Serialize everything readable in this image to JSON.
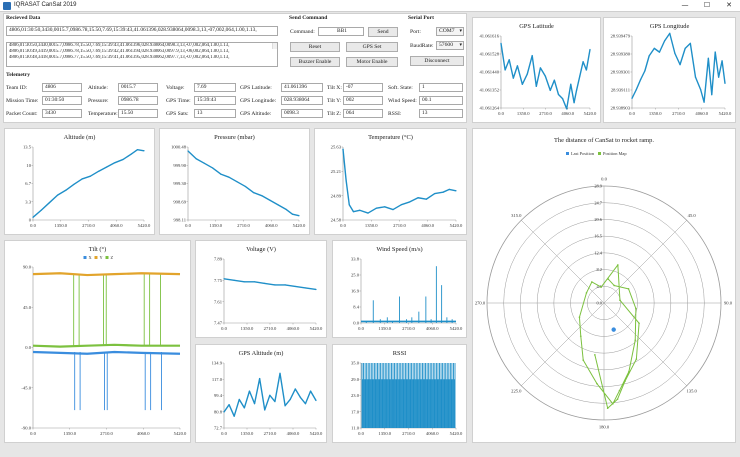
{
  "window": {
    "title": "IQRASAT CanSat 2019",
    "minimize": "—",
    "maximize": "☐",
    "close": "✕"
  },
  "received": {
    "label": "Recieved Data",
    "top_value": "4806,01:30:50,3430,0015.7,0986.78,15.50,7.69,15:39:43,41.061396,028.938064,0098.3,13,-07,002,064,1.00,1.13,",
    "lines": [
      "4806,01:30:50,3430,0015.7,0986.78,15.50,7.69,15:39:43,41.061396,028.938064,0098.3,13,-07,002,064,1.00,1.13,",
      "4806,01:30:49,3419,0015.7,0986.78,15.50,7.69,15:39:42,41.061394,028.938063,0097.9,13,-06,002,064,1.00,1.13,",
      "4806,01:30:48,3418,0015.7,0986.77,15.50,7.69,15:39:41,41.061395,028.938062,0097.7,13,-07,002,064,1.00,1.13,"
    ]
  },
  "command": {
    "label": "Send Command",
    "field_label": "Command:",
    "value": "BB1",
    "send": "Send",
    "reset": "Reset",
    "gps_set": "GPS Set",
    "buzzer": "Buzzer Enable",
    "motor": "Motor Enable"
  },
  "serial": {
    "label": "Serial Port",
    "port_label": "Port:",
    "port": "COM7",
    "baud_label": "BaudRate:",
    "baud": "57600",
    "disconnect": "Disconnect"
  },
  "telemetry": {
    "label": "Telemetry",
    "team_id": {
      "label": "Team ID:",
      "value": "4806"
    },
    "mission_time": {
      "label": "Mission Time:",
      "value": "01:30:50"
    },
    "packet_count": {
      "label": "Packet Count:",
      "value": "3430"
    },
    "altitude": {
      "label": "Altitude:",
      "value": "0015.7"
    },
    "pressure": {
      "label": "Pressure:",
      "value": "0986.78"
    },
    "temperature": {
      "label": "Temperature:",
      "value": "15.50"
    },
    "voltage": {
      "label": "Voltage:",
      "value": "7.69"
    },
    "gps_time": {
      "label": "GPS Time:",
      "value": "15:39:43"
    },
    "gps_sats": {
      "label": "GPS Sats:",
      "value": "13"
    },
    "gps_latitude": {
      "label": "GPS Latitude:",
      "value": "41.061396"
    },
    "gps_longitude": {
      "label": "GPS Longitude:",
      "value": "028.938064"
    },
    "gps_altitude": {
      "label": "GPS Altitude:",
      "value": "0098.3"
    },
    "tilt_x": {
      "label": "Tilt X:",
      "value": "-07"
    },
    "tilt_y": {
      "label": "Tilt Y:",
      "value": "002"
    },
    "tilt_z": {
      "label": "Tilt Z:",
      "value": "064"
    },
    "soft_state": {
      "label": "Soft. State:",
      "value": "1"
    },
    "wind_speed": {
      "label": "Wind Speed:",
      "value": "00.1"
    },
    "rssi": {
      "label": "RSSI:",
      "value": "13"
    }
  },
  "chart_data": [
    {
      "id": "lat",
      "type": "line",
      "title": "GPS Latitude",
      "yticks": [
        "41.061616",
        "41.061528",
        "41.061440",
        "41.061352",
        "41.061264"
      ],
      "xticks": [
        "0.0",
        "1350.0",
        "2710.0",
        "4060.0",
        "5420.0"
      ],
      "ylim": [
        41.061264,
        41.061616
      ],
      "xlim": [
        0,
        5420
      ],
      "x": [
        0,
        250,
        500,
        750,
        1000,
        1300,
        1600,
        1900,
        2150,
        2400,
        2700,
        3000,
        3250,
        3500,
        3750,
        4000,
        4250,
        4450,
        4600,
        4800,
        5000,
        5200,
        5420
      ],
      "values": [
        41.06158,
        41.06145,
        41.0615,
        41.06141,
        41.06147,
        41.06138,
        41.06143,
        41.06152,
        41.06137,
        41.06146,
        41.06142,
        41.06135,
        41.0614,
        41.06133,
        41.06131,
        41.06126,
        41.06138,
        41.06129,
        41.06135,
        41.06142,
        41.06149,
        41.06145,
        41.06155
      ]
    },
    {
      "id": "lon",
      "type": "line",
      "title": "GPS Longitude",
      "yticks": [
        "28.939479",
        "28.939380",
        "28.939301",
        "28.939111",
        "28.938903"
      ],
      "xticks": [
        "0.0",
        "1350.0",
        "2710.0",
        "4060.0",
        "5420.0"
      ],
      "ylim": [
        28.938903,
        28.939479
      ],
      "xlim": [
        0,
        5420
      ],
      "x": [
        0,
        250,
        500,
        750,
        1000,
        1300,
        1600,
        1900,
        2200,
        2500,
        2800,
        3100,
        3400,
        3700,
        4000,
        4200,
        4450,
        4650,
        4850,
        5050,
        5250,
        5420
      ],
      "values": [
        28.93898,
        28.93905,
        28.93913,
        28.9392,
        28.93932,
        28.93938,
        28.93935,
        28.93944,
        28.9395,
        28.93934,
        28.93925,
        28.93938,
        28.93942,
        28.93915,
        28.93905,
        28.93895,
        28.9393,
        28.93901,
        28.93935,
        28.93915,
        28.93928,
        28.9391
      ]
    },
    {
      "id": "alt",
      "type": "line",
      "title": "Altitude (m)",
      "yticks": [
        "13.5",
        "10",
        "6.7",
        "3.3",
        "0"
      ],
      "xticks": [
        "0.0",
        "1350.0",
        "2710.0",
        "4060.0",
        "5420.0"
      ],
      "ylim": [
        0,
        13.5
      ],
      "xlim": [
        0,
        5420
      ],
      "x": [
        0,
        400,
        800,
        1200,
        1600,
        2000,
        2400,
        2800,
        3200,
        3600,
        4000,
        4400,
        4800,
        5100,
        5420
      ],
      "values": [
        0.5,
        1.8,
        3.2,
        4.6,
        5.5,
        6.6,
        7.6,
        8.1,
        9.0,
        9.8,
        10.6,
        11.2,
        12.2,
        13.0,
        12.8
      ]
    },
    {
      "id": "pres",
      "type": "line",
      "title": "Pressure (mbar)",
      "yticks": [
        "1000.48",
        "999.90",
        "999.30",
        "998.69",
        "998.11"
      ],
      "xticks": [
        "0.0",
        "1350.0",
        "2710.0",
        "4060.0",
        "5420.0"
      ],
      "ylim": [
        998.11,
        1000.48
      ],
      "xlim": [
        0,
        5420
      ],
      "x": [
        0,
        400,
        800,
        1200,
        1600,
        2000,
        2400,
        2800,
        3200,
        3600,
        4000,
        4400,
        4800,
        5100,
        5420
      ],
      "values": [
        1000.35,
        1000.1,
        999.95,
        999.8,
        999.6,
        999.5,
        999.35,
        999.2,
        999.0,
        998.9,
        998.75,
        998.6,
        998.45,
        998.3,
        998.25
      ]
    },
    {
      "id": "temp",
      "type": "line",
      "title": "Temperature (°C)",
      "yticks": [
        "25.63",
        "25.21",
        "24.89",
        "24.58"
      ],
      "xticks": [
        "0.0",
        "1350.0",
        "2710.0",
        "4060.0",
        "5420.0"
      ],
      "ylim": [
        24.58,
        25.63
      ],
      "xlim": [
        0,
        5420
      ],
      "x": [
        0,
        150,
        300,
        500,
        800,
        1200,
        1600,
        2000,
        2400,
        2800,
        3200,
        3600,
        4000,
        4400,
        4800,
        5100,
        5420
      ],
      "values": [
        25.6,
        25.15,
        24.8,
        24.7,
        24.72,
        24.68,
        24.75,
        24.77,
        24.73,
        24.8,
        24.84,
        24.9,
        24.88,
        24.96,
        24.98,
        25.02,
        25.0
      ]
    },
    {
      "id": "tilt",
      "type": "line",
      "title": "Tilt (°)",
      "legend": [
        "X",
        "Y",
        "Z"
      ],
      "yticks": [
        "90.0",
        "45.0",
        "0.0",
        "-45.0",
        "-90.0"
      ],
      "xticks": [
        "0.0",
        "1350.0",
        "2710.0",
        "4060.0",
        "5420.0"
      ],
      "ylim": [
        -90,
        90
      ],
      "xlim": [
        0,
        5420
      ],
      "series": [
        {
          "name": "X",
          "color": "#3a8dde",
          "values": [
            -5,
            -6,
            -7,
            -5,
            -6,
            -7
          ]
        },
        {
          "name": "Y",
          "color": "#e2a42c",
          "values": [
            82,
            83,
            81,
            82,
            83,
            82
          ]
        },
        {
          "name": "Z",
          "color": "#7cc13f",
          "values": [
            2,
            1,
            2,
            3,
            2,
            2
          ]
        }
      ],
      "x": [
        0,
        1000,
        2000,
        3000,
        4000,
        5420
      ],
      "spikes_x": [
        1500,
        1700,
        2600,
        2700,
        4100,
        4300,
        4700
      ]
    },
    {
      "id": "volt",
      "type": "line",
      "title": "Voltage (V)",
      "yticks": [
        "7.89",
        "7.75",
        "7.61",
        "7.47"
      ],
      "xticks": [
        "0.0",
        "1350.0",
        "2710.0",
        "4060.0",
        "5420.0"
      ],
      "ylim": [
        7.47,
        7.89
      ],
      "xlim": [
        0,
        5420
      ],
      "x": [
        0,
        600,
        1200,
        1800,
        2400,
        3000,
        3600,
        4200,
        4800,
        5420
      ],
      "values": [
        7.76,
        7.75,
        7.74,
        7.74,
        7.73,
        7.72,
        7.72,
        7.71,
        7.7,
        7.69
      ]
    },
    {
      "id": "wind",
      "type": "bar",
      "title": "Wind Speed (m/s)",
      "yticks": [
        "33.8",
        "25.0",
        "16.9",
        "8.4",
        "0.0"
      ],
      "xticks": [
        "0.0",
        "1350.0",
        "2710.0",
        "4060.0",
        "5420.0"
      ],
      "ylim": [
        0,
        33.8
      ],
      "xlim": [
        0,
        5420
      ],
      "x": [
        300,
        700,
        1100,
        1500,
        1800,
        2200,
        2600,
        2900,
        3300,
        3700,
        4000,
        4300,
        4600,
        4900,
        5200
      ],
      "values": [
        1,
        12,
        2,
        3,
        1,
        14,
        2,
        3,
        6,
        14,
        2,
        30,
        20,
        3,
        2
      ]
    },
    {
      "id": "gpsalt",
      "type": "line",
      "title": "GPS Altitude (m)",
      "yticks": [
        "134.9",
        "117.0",
        "99.4",
        "80.8",
        "72.7"
      ],
      "xticks": [
        "0.0",
        "1350.0",
        "2710.0",
        "4060.0",
        "5420.0"
      ],
      "ylim": [
        72.7,
        134.9
      ],
      "xlim": [
        0,
        5420
      ],
      "x": [
        0,
        300,
        600,
        900,
        1200,
        1500,
        1800,
        2100,
        2400,
        2700,
        3000,
        3300,
        3600,
        3900,
        4200,
        4500,
        4800,
        5100,
        5420
      ],
      "values": [
        88,
        95,
        84,
        100,
        92,
        108,
        96,
        120,
        90,
        104,
        98,
        125,
        94,
        100,
        110,
        102,
        96,
        108,
        99
      ]
    },
    {
      "id": "rssi",
      "type": "bar",
      "title": "RSSI",
      "yticks": [
        "35.0",
        "29.0",
        "23.0",
        "17.0",
        "11.0"
      ],
      "xticks": [
        "0.0",
        "1350.0",
        "2710.0",
        "4060.0",
        "5420.0"
      ],
      "ylim": [
        11,
        35
      ],
      "xlim": [
        0,
        5420
      ],
      "values": [
        35,
        29
      ]
    },
    {
      "id": "polar",
      "type": "scatter",
      "title": "The distance of CanSat to rocket ramp.",
      "legend": [
        "Last Position",
        "Position Map"
      ],
      "angles": [
        "0.0",
        "45.0",
        "90.0",
        "135.0",
        "180.0",
        "225.0",
        "270.0",
        "315.0"
      ],
      "rticks": [
        "0.0",
        "4.1",
        "8.2",
        "12.4",
        "16.5",
        "20.6",
        "24.7",
        "28.9"
      ],
      "angle_deg": [
        10,
        30,
        60,
        100,
        140,
        160,
        170,
        175,
        185,
        200,
        215,
        240,
        300,
        330,
        350,
        20,
        80,
        120,
        150,
        165,
        172,
        178,
        190
      ],
      "r": [
        6,
        5,
        7,
        8,
        12,
        18,
        22,
        25,
        20,
        15,
        10,
        7,
        5,
        6,
        4,
        10,
        4,
        10,
        16,
        20,
        24,
        26,
        13
      ],
      "last": {
        "angle_deg": 160,
        "r": 7
      }
    }
  ]
}
